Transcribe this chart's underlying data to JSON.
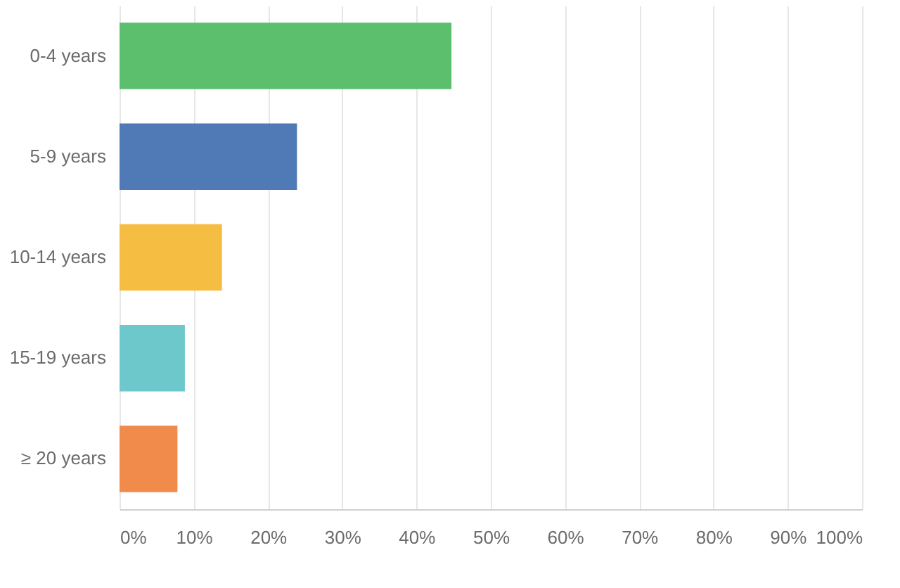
{
  "chart_data": {
    "type": "bar",
    "orientation": "horizontal",
    "categories": [
      "0-4 years",
      "5-9 years",
      "10-14 years",
      "15-19 years",
      "≥ 20 years"
    ],
    "values": [
      44.7,
      23.9,
      13.8,
      8.8,
      7.8
    ],
    "colors": [
      "#5bbf6e",
      "#4f7ab5",
      "#f5bd42",
      "#6cc8cb",
      "#f08b4b"
    ],
    "xlim": [
      0,
      100
    ],
    "xticks": [
      {
        "value": 0,
        "label": "0%"
      },
      {
        "value": 10,
        "label": "10%"
      },
      {
        "value": 20,
        "label": "20%"
      },
      {
        "value": 30,
        "label": "30%"
      },
      {
        "value": 40,
        "label": "40%"
      },
      {
        "value": 50,
        "label": "50%"
      },
      {
        "value": 60,
        "label": "60%"
      },
      {
        "value": 70,
        "label": "70%"
      },
      {
        "value": 80,
        "label": "80%"
      },
      {
        "value": 90,
        "label": "90%"
      },
      {
        "value": 100,
        "label": "100%"
      }
    ],
    "grid": "x"
  }
}
